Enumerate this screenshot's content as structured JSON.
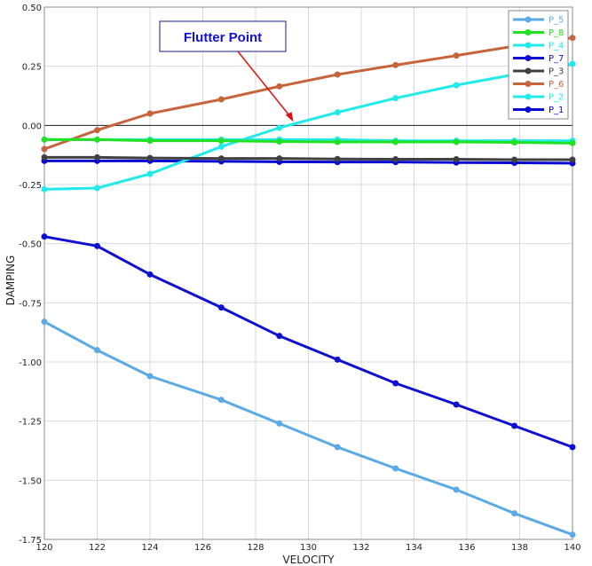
{
  "chart_data": {
    "type": "line",
    "xlabel": "VELOCITY",
    "ylabel": "DAMPING",
    "xlim": [
      120,
      140
    ],
    "ylim": [
      -1.75,
      0.5
    ],
    "xticks": [
      120,
      122,
      124,
      126,
      128,
      130,
      132,
      134,
      136,
      138,
      140
    ],
    "yticks": [
      0.5,
      0.25,
      0.0,
      -0.25,
      -0.5,
      -0.75,
      -1.0,
      -1.25,
      -1.5,
      -1.75
    ],
    "ytick_labels": [
      "0.50",
      "0.25",
      "0.00",
      "-0.25",
      "-0.50",
      "-0.75",
      "-1.00",
      "-1.25",
      "-1.50",
      "-1.75"
    ],
    "grid": true,
    "legend_position": "top-right",
    "x": [
      120.0,
      122.0,
      124.0,
      126.7,
      128.9,
      131.1,
      133.3,
      135.6,
      137.8,
      140.0
    ],
    "series": [
      {
        "name": "P_5",
        "color": "#5aaae6",
        "values": [
          -0.83,
          -0.95,
          -1.06,
          -1.16,
          -1.26,
          -1.36,
          -1.45,
          -1.54,
          -1.64,
          -1.73
        ]
      },
      {
        "name": "P_8",
        "color": "#22e022",
        "values": [
          -0.06,
          -0.06,
          -0.065,
          -0.065,
          -0.068,
          -0.07,
          -0.07,
          -0.07,
          -0.072,
          -0.075
        ]
      },
      {
        "name": "P_4",
        "color": "#22eaea",
        "values": [
          -0.06,
          -0.06,
          -0.06,
          -0.06,
          -0.06,
          -0.06,
          -0.065,
          -0.065,
          -0.065,
          -0.065
        ]
      },
      {
        "name": "P_7",
        "color": "#1010d0",
        "values": [
          -0.47,
          -0.51,
          -0.63,
          -0.77,
          -0.89,
          -0.99,
          -1.09,
          -1.18,
          -1.27,
          -1.36
        ]
      },
      {
        "name": "P_3",
        "color": "#404040",
        "values": [
          -0.135,
          -0.135,
          -0.138,
          -0.14,
          -0.14,
          -0.142,
          -0.143,
          -0.143,
          -0.145,
          -0.145
        ]
      },
      {
        "name": "P_6",
        "color": "#c8643c",
        "values": [
          -0.1,
          -0.02,
          0.05,
          0.11,
          0.165,
          0.215,
          0.255,
          0.295,
          0.335,
          0.37
        ]
      },
      {
        "name": "P_2",
        "color": "#22eaea",
        "values": [
          -0.27,
          -0.265,
          -0.205,
          -0.09,
          -0.01,
          0.055,
          0.115,
          0.17,
          0.215,
          0.26
        ]
      },
      {
        "name": "P_1",
        "color": "#0808d0",
        "values": [
          -0.15,
          -0.15,
          -0.15,
          -0.152,
          -0.154,
          -0.155,
          -0.155,
          -0.157,
          -0.158,
          -0.16
        ]
      }
    ],
    "annotation": {
      "text": "Flutter Point",
      "target_x": 129.5,
      "target_y": 0.0
    }
  }
}
